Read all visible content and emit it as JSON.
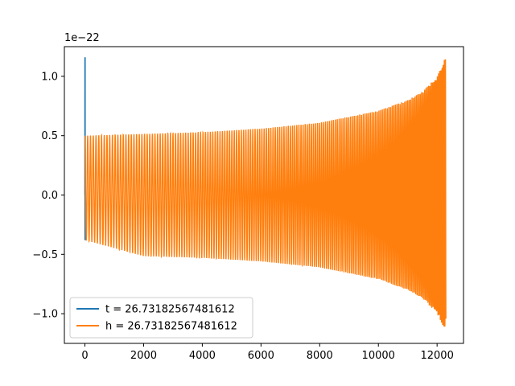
{
  "chart_data": {
    "type": "line",
    "title": "",
    "xlabel": "",
    "ylabel": "",
    "offset_text": "1e−22",
    "xlim": [
      -700,
      12900
    ],
    "ylim": [
      -1.25,
      1.25
    ],
    "xticks": [
      0,
      2000,
      4000,
      6000,
      8000,
      10000,
      12000
    ],
    "xtick_labels": [
      "0",
      "2000",
      "4000",
      "6000",
      "8000",
      "10000",
      "12000"
    ],
    "yticks": [
      -1.0,
      -0.5,
      0.0,
      0.5,
      1.0
    ],
    "ytick_labels": [
      "−1.0",
      "−0.5",
      "0.0",
      "0.5",
      "1.0"
    ],
    "grid": false,
    "legend_position": "lower-left",
    "series": [
      {
        "name": "t = 26.73182567481612",
        "color": "#1f77b4",
        "x": [
          0,
          2,
          4,
          6,
          8,
          10,
          12
        ],
        "y": [
          0.0,
          1.16,
          -0.38,
          1.16,
          -0.38,
          0.5,
          -0.38
        ]
      },
      {
        "name": "h = 26.73182567481612",
        "color": "#ff7f0e",
        "x": [
          0,
          2000,
          4000,
          6000,
          8000,
          10000,
          11000,
          11500,
          12000,
          12300
        ],
        "y_envelope_upper": [
          0.5,
          0.515,
          0.53,
          0.56,
          0.61,
          0.71,
          0.8,
          0.87,
          1.0,
          1.17
        ],
        "y_envelope_lower": [
          -0.38,
          -0.515,
          -0.53,
          -0.56,
          -0.61,
          -0.71,
          -0.8,
          -0.87,
          -1.0,
          -1.15
        ]
      }
    ]
  }
}
